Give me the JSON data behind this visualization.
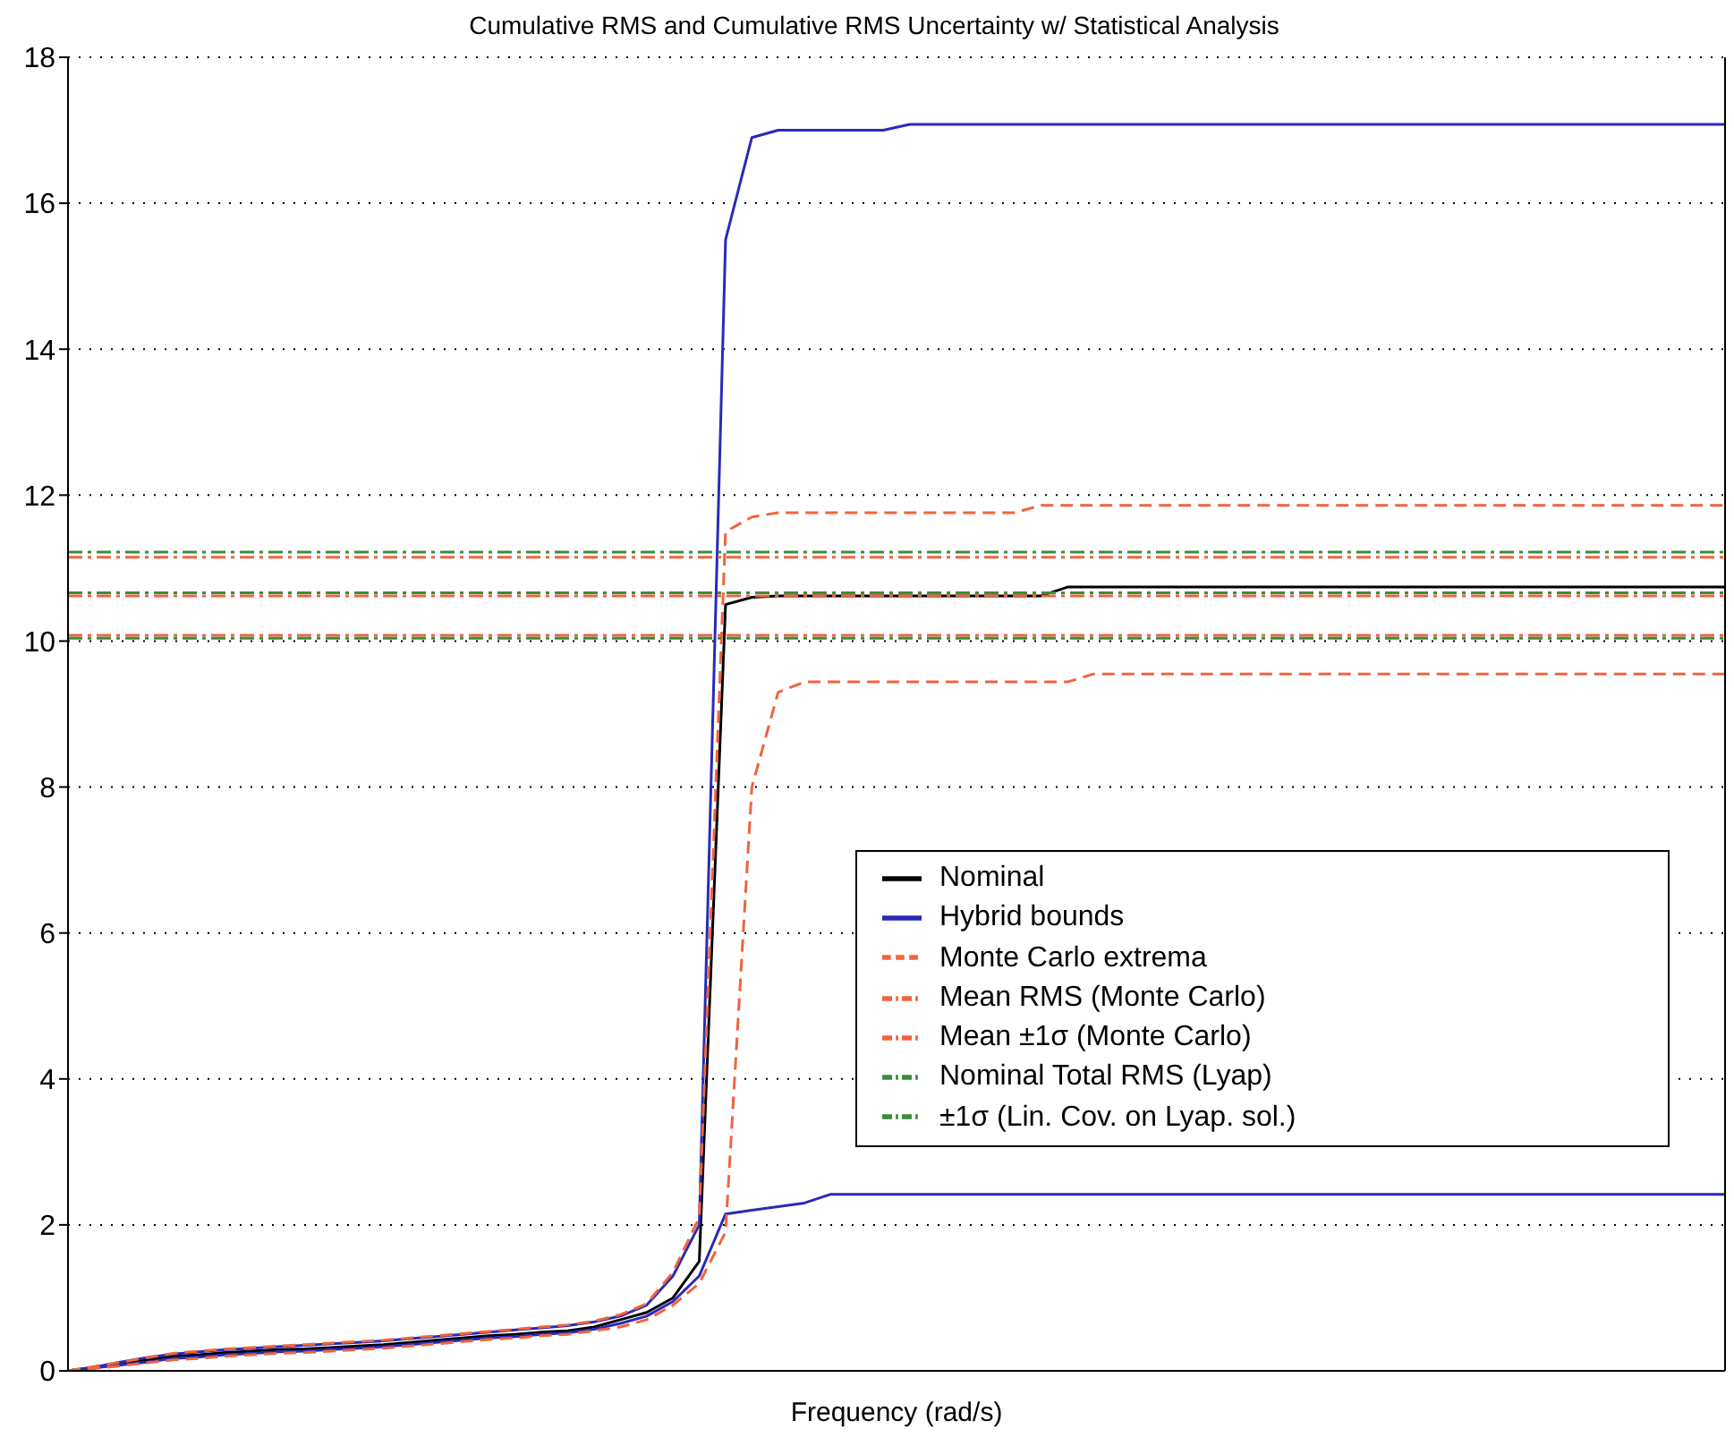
{
  "chart_data": {
    "type": "line",
    "title": "Cumulative RMS and Cumulative RMS Uncertainty w/ Statistical Analysis",
    "xlabel": "Frequency (rad/s)",
    "categories": [
      null,
      null,
      null,
      null,
      null,
      null,
      null,
      null,
      null,
      null,
      null,
      null,
      null,
      null,
      null,
      null,
      null,
      null,
      null,
      null,
      null,
      null,
      null,
      null,
      null,
      null,
      null,
      null,
      null,
      null,
      null,
      null,
      null,
      null,
      null,
      null,
      null,
      null,
      null,
      null,
      null,
      null,
      null,
      null,
      null,
      null,
      null,
      null,
      null,
      null,
      null,
      null,
      null,
      null,
      null,
      null,
      null,
      null,
      null,
      null,
      null,
      null,
      null,
      null
    ],
    "ylim": [
      0,
      18
    ],
    "yticks": [
      0,
      2,
      4,
      6,
      8,
      10,
      12,
      14,
      16,
      18
    ],
    "tick_labels": "y",
    "grid": "y",
    "legend": "right",
    "series": [
      {
        "name": "Nominal",
        "color": "#000000",
        "line_style": "solid",
        "values": [
          0,
          0.05,
          0.1,
          0.15,
          0.2,
          0.22,
          0.25,
          0.27,
          0.29,
          0.3,
          0.32,
          0.34,
          0.36,
          0.39,
          0.42,
          0.45,
          0.48,
          0.5,
          0.53,
          0.55,
          0.6,
          0.7,
          0.8,
          1.0,
          1.5,
          10.5,
          10.6,
          10.62,
          10.62,
          10.62,
          10.62,
          10.62,
          10.62,
          10.62,
          10.62,
          10.62,
          10.62,
          10.62,
          10.74,
          10.74,
          10.74,
          10.74,
          10.74,
          10.74,
          10.74,
          10.74,
          10.74,
          10.74,
          10.74,
          10.74,
          10.74,
          10.74,
          10.74,
          10.74,
          10.74,
          10.74,
          10.74,
          10.74,
          10.74,
          10.74,
          10.74,
          10.74,
          10.74,
          10.74
        ]
      },
      {
        "name": "Hybrid bounds",
        "color": "#2a2ab8",
        "line_style": "solid",
        "values": [
          0,
          0.05,
          0.12,
          0.18,
          0.23,
          0.26,
          0.29,
          0.31,
          0.33,
          0.35,
          0.37,
          0.39,
          0.41,
          0.44,
          0.47,
          0.5,
          0.53,
          0.56,
          0.59,
          0.62,
          0.67,
          0.75,
          0.9,
          1.3,
          2.0,
          15.5,
          16.9,
          17.0,
          17.0,
          17.0,
          17.0,
          17.0,
          17.08,
          17.08,
          17.08,
          17.08,
          17.08,
          17.08,
          17.08,
          17.08,
          17.08,
          17.08,
          17.08,
          17.08,
          17.08,
          17.08,
          17.08,
          17.08,
          17.08,
          17.08,
          17.08,
          17.08,
          17.08,
          17.08,
          17.08,
          17.08,
          17.08,
          17.08,
          17.08,
          17.08,
          17.08,
          17.08,
          17.08,
          17.08
        ]
      },
      {
        "color": "#2a2ab8",
        "line_style": "solid",
        "values": [
          0,
          0.04,
          0.08,
          0.12,
          0.17,
          0.19,
          0.22,
          0.24,
          0.26,
          0.27,
          0.29,
          0.31,
          0.33,
          0.36,
          0.39,
          0.42,
          0.45,
          0.47,
          0.5,
          0.52,
          0.57,
          0.65,
          0.75,
          0.95,
          1.3,
          2.15,
          2.2,
          2.25,
          2.3,
          2.42,
          2.42,
          2.42,
          2.42,
          2.42,
          2.42,
          2.42,
          2.42,
          2.42,
          2.42,
          2.42,
          2.42,
          2.42,
          2.42,
          2.42,
          2.42,
          2.42,
          2.42,
          2.42,
          2.42,
          2.42,
          2.42,
          2.42,
          2.42,
          2.42,
          2.42,
          2.42,
          2.42,
          2.42,
          2.42,
          2.42,
          2.42,
          2.42,
          2.42,
          2.42
        ]
      },
      {
        "name": "Monte Carlo extrema",
        "color": "#f0643c",
        "line_style": "dashed",
        "values": [
          0,
          0.06,
          0.12,
          0.18,
          0.24,
          0.27,
          0.3,
          0.32,
          0.34,
          0.36,
          0.38,
          0.4,
          0.42,
          0.45,
          0.48,
          0.51,
          0.54,
          0.57,
          0.6,
          0.63,
          0.68,
          0.77,
          0.92,
          1.35,
          2.1,
          11.5,
          11.7,
          11.76,
          11.76,
          11.76,
          11.76,
          11.76,
          11.76,
          11.76,
          11.76,
          11.76,
          11.76,
          11.86,
          11.86,
          11.86,
          11.86,
          11.86,
          11.86,
          11.86,
          11.86,
          11.86,
          11.86,
          11.86,
          11.86,
          11.86,
          11.86,
          11.86,
          11.86,
          11.86,
          11.86,
          11.86,
          11.86,
          11.86,
          11.86,
          11.86,
          11.86,
          11.86,
          11.86,
          11.86
        ]
      },
      {
        "color": "#f0643c",
        "line_style": "dashed",
        "values": [
          0,
          0.03,
          0.07,
          0.11,
          0.15,
          0.17,
          0.2,
          0.22,
          0.24,
          0.25,
          0.27,
          0.29,
          0.31,
          0.34,
          0.37,
          0.4,
          0.43,
          0.45,
          0.48,
          0.5,
          0.55,
          0.6,
          0.7,
          0.9,
          1.2,
          1.9,
          8.0,
          9.3,
          9.44,
          9.44,
          9.44,
          9.44,
          9.44,
          9.44,
          9.44,
          9.44,
          9.44,
          9.44,
          9.44,
          9.55,
          9.55,
          9.55,
          9.55,
          9.55,
          9.55,
          9.55,
          9.55,
          9.55,
          9.55,
          9.55,
          9.55,
          9.55,
          9.55,
          9.55,
          9.55,
          9.55,
          9.55,
          9.55,
          9.55,
          9.55,
          9.55,
          9.55,
          9.55,
          9.55
        ]
      },
      {
        "name": "Mean RMS (Monte Carlo)",
        "color": "#f0643c",
        "line_style": "dashdot",
        "values": [
          10.62,
          10.62,
          10.62,
          10.62,
          10.62,
          10.62,
          10.62,
          10.62,
          10.62,
          10.62,
          10.62,
          10.62,
          10.62,
          10.62,
          10.62,
          10.62,
          10.62,
          10.62,
          10.62,
          10.62,
          10.62,
          10.62,
          10.62,
          10.62,
          10.62,
          10.62,
          10.62,
          10.62,
          10.62,
          10.62,
          10.62,
          10.62,
          10.62,
          10.62,
          10.62,
          10.62,
          10.62,
          10.62,
          10.62,
          10.62,
          10.62,
          10.62,
          10.62,
          10.62,
          10.62,
          10.62,
          10.62,
          10.62,
          10.62,
          10.62,
          10.62,
          10.62,
          10.62,
          10.62,
          10.62,
          10.62,
          10.62,
          10.62,
          10.62,
          10.62,
          10.62,
          10.62,
          10.62,
          10.62
        ]
      },
      {
        "name": "Mean ±1σ (Monte Carlo)",
        "color": "#f0643c",
        "line_style": "dashdot",
        "values": [
          10.08,
          10.08,
          10.08,
          10.08,
          10.08,
          10.08,
          10.08,
          10.08,
          10.08,
          10.08,
          10.08,
          10.08,
          10.08,
          10.08,
          10.08,
          10.08,
          10.08,
          10.08,
          10.08,
          10.08,
          10.08,
          10.08,
          10.08,
          10.08,
          10.08,
          10.08,
          10.08,
          10.08,
          10.08,
          10.08,
          10.08,
          10.08,
          10.08,
          10.08,
          10.08,
          10.08,
          10.08,
          10.08,
          10.08,
          10.08,
          10.08,
          10.08,
          10.08,
          10.08,
          10.08,
          10.08,
          10.08,
          10.08,
          10.08,
          10.08,
          10.08,
          10.08,
          10.08,
          10.08,
          10.08,
          10.08,
          10.08,
          10.08,
          10.08,
          10.08,
          10.08,
          10.08,
          10.08,
          10.08
        ]
      },
      {
        "color": "#f0643c",
        "line_style": "dashdot",
        "values": [
          11.15,
          11.15,
          11.15,
          11.15,
          11.15,
          11.15,
          11.15,
          11.15,
          11.15,
          11.15,
          11.15,
          11.15,
          11.15,
          11.15,
          11.15,
          11.15,
          11.15,
          11.15,
          11.15,
          11.15,
          11.15,
          11.15,
          11.15,
          11.15,
          11.15,
          11.15,
          11.15,
          11.15,
          11.15,
          11.15,
          11.15,
          11.15,
          11.15,
          11.15,
          11.15,
          11.15,
          11.15,
          11.15,
          11.15,
          11.15,
          11.15,
          11.15,
          11.15,
          11.15,
          11.15,
          11.15,
          11.15,
          11.15,
          11.15,
          11.15,
          11.15,
          11.15,
          11.15,
          11.15,
          11.15,
          11.15,
          11.15,
          11.15,
          11.15,
          11.15,
          11.15,
          11.15,
          11.15,
          11.15
        ]
      },
      {
        "name": "Nominal Total RMS (Lyap)",
        "color": "#3c8c3c",
        "line_style": "dashdot",
        "values": [
          10.66,
          10.66,
          10.66,
          10.66,
          10.66,
          10.66,
          10.66,
          10.66,
          10.66,
          10.66,
          10.66,
          10.66,
          10.66,
          10.66,
          10.66,
          10.66,
          10.66,
          10.66,
          10.66,
          10.66,
          10.66,
          10.66,
          10.66,
          10.66,
          10.66,
          10.66,
          10.66,
          10.66,
          10.66,
          10.66,
          10.66,
          10.66,
          10.66,
          10.66,
          10.66,
          10.66,
          10.66,
          10.66,
          10.66,
          10.66,
          10.66,
          10.66,
          10.66,
          10.66,
          10.66,
          10.66,
          10.66,
          10.66,
          10.66,
          10.66,
          10.66,
          10.66,
          10.66,
          10.66,
          10.66,
          10.66,
          10.66,
          10.66,
          10.66,
          10.66,
          10.66,
          10.66,
          10.66,
          10.66
        ]
      },
      {
        "name": "±1σ (Lin. Cov. on Lyap. sol.)",
        "color": "#3c8c3c",
        "line_style": "dashdot",
        "values": [
          10.04,
          10.04,
          10.04,
          10.04,
          10.04,
          10.04,
          10.04,
          10.04,
          10.04,
          10.04,
          10.04,
          10.04,
          10.04,
          10.04,
          10.04,
          10.04,
          10.04,
          10.04,
          10.04,
          10.04,
          10.04,
          10.04,
          10.04,
          10.04,
          10.04,
          10.04,
          10.04,
          10.04,
          10.04,
          10.04,
          10.04,
          10.04,
          10.04,
          10.04,
          10.04,
          10.04,
          10.04,
          10.04,
          10.04,
          10.04,
          10.04,
          10.04,
          10.04,
          10.04,
          10.04,
          10.04,
          10.04,
          10.04,
          10.04,
          10.04,
          10.04,
          10.04,
          10.04,
          10.04,
          10.04,
          10.04,
          10.04,
          10.04,
          10.04,
          10.04,
          10.04,
          10.04,
          10.04,
          10.04
        ]
      },
      {
        "color": "#3c8c3c",
        "line_style": "dashdot",
        "values": [
          11.22,
          11.22,
          11.22,
          11.22,
          11.22,
          11.22,
          11.22,
          11.22,
          11.22,
          11.22,
          11.22,
          11.22,
          11.22,
          11.22,
          11.22,
          11.22,
          11.22,
          11.22,
          11.22,
          11.22,
          11.22,
          11.22,
          11.22,
          11.22,
          11.22,
          11.22,
          11.22,
          11.22,
          11.22,
          11.22,
          11.22,
          11.22,
          11.22,
          11.22,
          11.22,
          11.22,
          11.22,
          11.22,
          11.22,
          11.22,
          11.22,
          11.22,
          11.22,
          11.22,
          11.22,
          11.22,
          11.22,
          11.22,
          11.22,
          11.22,
          11.22,
          11.22,
          11.22,
          11.22,
          11.22,
          11.22,
          11.22,
          11.22,
          11.22,
          11.22,
          11.22,
          11.22,
          11.22,
          11.22
        ]
      }
    ]
  }
}
